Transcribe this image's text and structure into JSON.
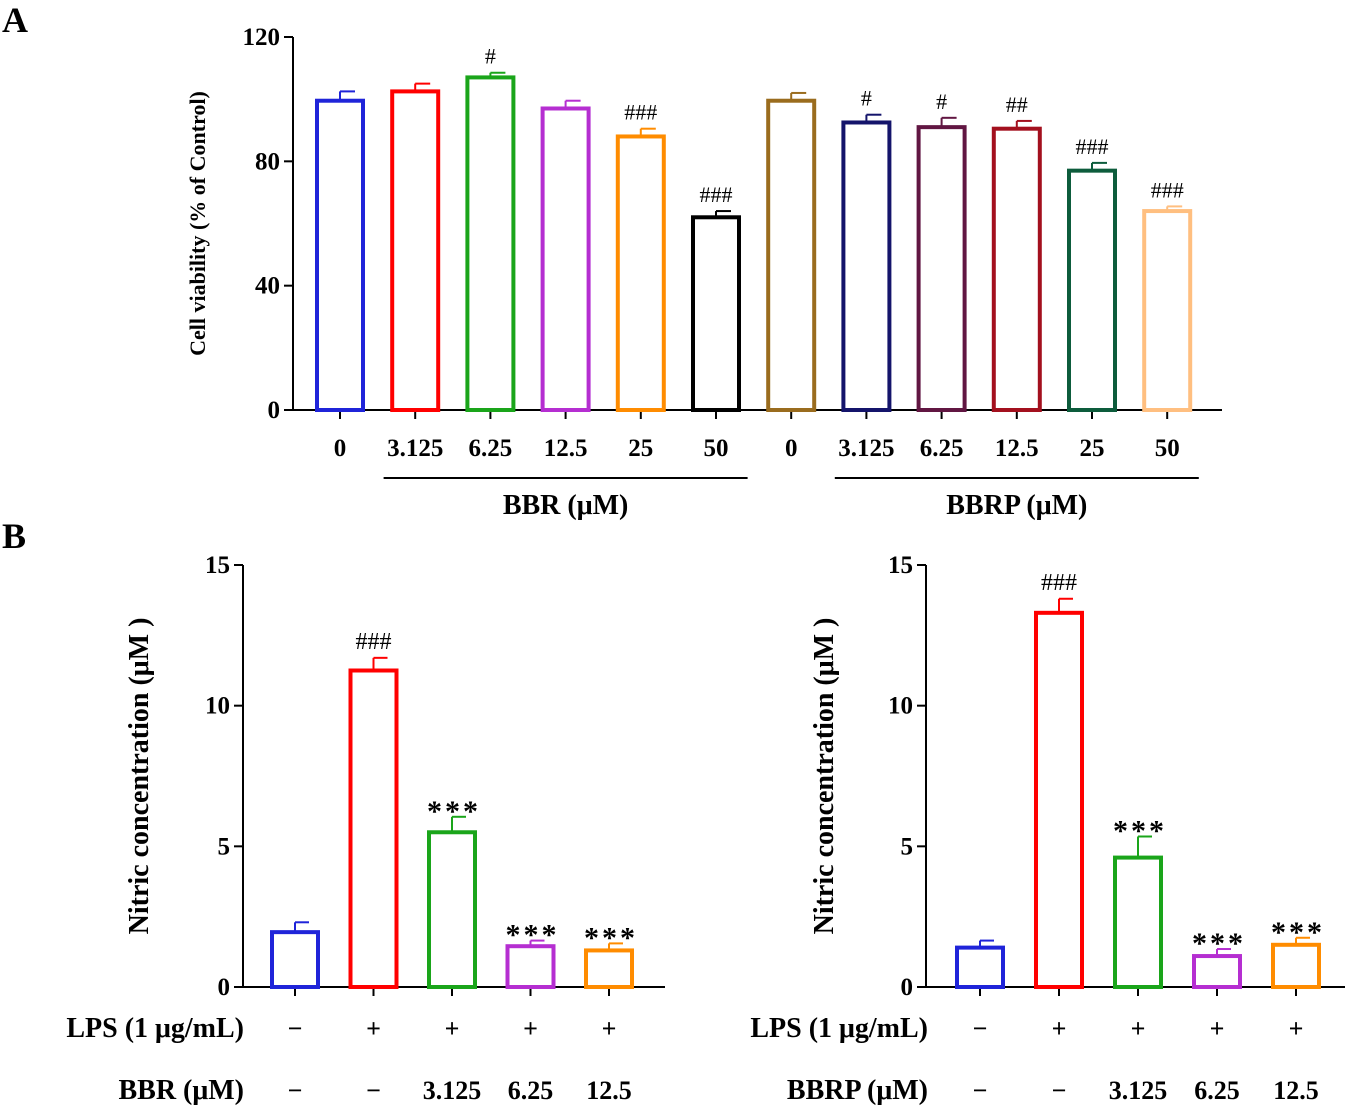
{
  "figure": {
    "panel_a_label": "A",
    "panel_b_label": "B"
  },
  "chart_data": [
    {
      "id": "A",
      "type": "bar",
      "ylabel": "Cell viability (% of Control)",
      "ylim": [
        0,
        120
      ],
      "yticks": [
        0,
        40,
        80,
        120
      ],
      "categories": [
        "0",
        "3.125",
        "6.25",
        "12.5",
        "25",
        "50",
        "0",
        "3.125",
        "6.25",
        "12.5",
        "25",
        "50"
      ],
      "values": [
        99.5,
        102.5,
        107,
        97,
        88,
        62,
        99.5,
        92.5,
        91,
        90.5,
        77,
        64
      ],
      "errors": [
        3,
        2.5,
        1.5,
        2.5,
        2.5,
        2,
        2.5,
        2.5,
        3,
        2.5,
        2.5,
        1.5
      ],
      "annotations": [
        "",
        "",
        "#",
        "",
        "###",
        "###",
        "",
        "#",
        "#",
        "##",
        "###",
        "###"
      ],
      "colors": [
        "#1f24d9",
        "#ff0000",
        "#1aa51a",
        "#b52ed1",
        "#ff8c00",
        "#000000",
        "#9a6c1e",
        "#14146b",
        "#611642",
        "#a3101e",
        "#0d5c3c",
        "#ffbf80"
      ],
      "groups": [
        {
          "label": "BBR (μM)",
          "from": 1,
          "to": 5
        },
        {
          "label": "BBRP (μM)",
          "from": 7,
          "to": 11
        }
      ]
    },
    {
      "id": "B-left",
      "type": "bar",
      "ylabel": "Nitric concentration (μM )",
      "ylim": [
        0,
        15
      ],
      "yticks": [
        0,
        5,
        10,
        15
      ],
      "values": [
        1.95,
        11.25,
        5.5,
        1.45,
        1.3
      ],
      "errors": [
        0.35,
        0.45,
        0.55,
        0.2,
        0.25
      ],
      "annotations": [
        "",
        "###",
        "***",
        "***",
        "***"
      ],
      "colors": [
        "#1f24d9",
        "#ff0000",
        "#1aa51a",
        "#b52ed1",
        "#ff8c00"
      ],
      "conditions": [
        {
          "label": "LPS (1 μg/mL)",
          "values": [
            "−",
            "+",
            "+",
            "+",
            "+"
          ]
        },
        {
          "label": "BBR (μM)",
          "values": [
            "−",
            "−",
            "3.125",
            "6.25",
            "12.5"
          ]
        }
      ]
    },
    {
      "id": "B-right",
      "type": "bar",
      "ylabel": "Nitric concentration (μM )",
      "ylim": [
        0,
        15
      ],
      "yticks": [
        0,
        5,
        10,
        15
      ],
      "values": [
        1.4,
        13.3,
        4.6,
        1.1,
        1.5
      ],
      "errors": [
        0.25,
        0.5,
        0.75,
        0.25,
        0.25
      ],
      "annotations": [
        "",
        "###",
        "***",
        "***",
        "***"
      ],
      "colors": [
        "#1f24d9",
        "#ff0000",
        "#1aa51a",
        "#b52ed1",
        "#ff8c00"
      ],
      "conditions": [
        {
          "label": "LPS (1 μg/mL)",
          "values": [
            "−",
            "+",
            "+",
            "+",
            "+"
          ]
        },
        {
          "label": "BBRP (μM)",
          "values": [
            "−",
            "−",
            "3.125",
            "6.25",
            "12.5"
          ]
        }
      ]
    }
  ]
}
